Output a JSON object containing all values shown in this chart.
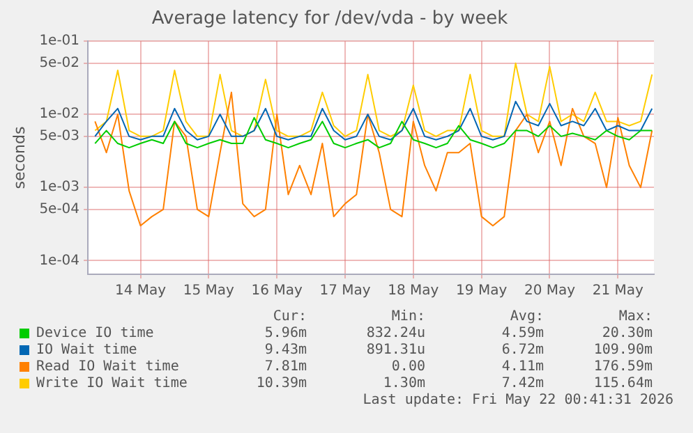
{
  "chart_data": {
    "type": "line",
    "title": "Average latency for /dev/vda - by week",
    "ylabel": "seconds",
    "log": "y",
    "grid": true,
    "legend": "bottom",
    "x": [
      "2026-05-13T20:00",
      "2026-05-14T00:00",
      "2026-05-14T04:00",
      "2026-05-14T08:00",
      "2026-05-14T12:00",
      "2026-05-14T16:00",
      "2026-05-14T20:00",
      "2026-05-15T00:00",
      "2026-05-15T04:00",
      "2026-05-15T08:00",
      "2026-05-15T12:00",
      "2026-05-15T16:00",
      "2026-05-15T20:00",
      "2026-05-16T00:00",
      "2026-05-16T04:00",
      "2026-05-16T08:00",
      "2026-05-16T12:00",
      "2026-05-16T16:00",
      "2026-05-16T20:00",
      "2026-05-17T00:00",
      "2026-05-17T04:00",
      "2026-05-17T08:00",
      "2026-05-17T12:00",
      "2026-05-17T16:00",
      "2026-05-17T20:00",
      "2026-05-18T00:00",
      "2026-05-18T04:00",
      "2026-05-18T08:00",
      "2026-05-18T12:00",
      "2026-05-18T16:00",
      "2026-05-18T20:00",
      "2026-05-19T00:00",
      "2026-05-19T04:00",
      "2026-05-19T08:00",
      "2026-05-19T12:00",
      "2026-05-19T16:00",
      "2026-05-19T20:00",
      "2026-05-20T00:00",
      "2026-05-20T04:00",
      "2026-05-20T08:00",
      "2026-05-20T12:00",
      "2026-05-20T16:00",
      "2026-05-20T20:00",
      "2026-05-21T00:00",
      "2026-05-21T04:00",
      "2026-05-21T08:00",
      "2026-05-21T12:00",
      "2026-05-21T16:00",
      "2026-05-21T20:00",
      "2026-05-22T00:00"
    ],
    "series": [
      {
        "name": "Device IO time",
        "color": "#00cc00",
        "values": [
          0.004,
          0.006,
          0.004,
          0.0035,
          0.004,
          0.0045,
          0.004,
          0.008,
          0.004,
          0.0035,
          0.004,
          0.0045,
          0.004,
          0.004,
          0.009,
          0.0045,
          0.004,
          0.0035,
          0.004,
          0.0045,
          0.008,
          0.004,
          0.0035,
          0.004,
          0.0045,
          0.0035,
          0.004,
          0.008,
          0.0045,
          0.004,
          0.0035,
          0.004,
          0.007,
          0.0045,
          0.004,
          0.0035,
          0.004,
          0.006,
          0.006,
          0.005,
          0.007,
          0.005,
          0.0055,
          0.005,
          0.0045,
          0.006,
          0.005,
          0.0045,
          0.006,
          0.006
        ]
      },
      {
        "name": "IO Wait time",
        "color": "#0066b3",
        "values": [
          0.005,
          0.008,
          0.012,
          0.005,
          0.0045,
          0.005,
          0.005,
          0.012,
          0.006,
          0.0045,
          0.005,
          0.01,
          0.005,
          0.005,
          0.006,
          0.012,
          0.005,
          0.0045,
          0.005,
          0.005,
          0.012,
          0.006,
          0.0045,
          0.005,
          0.01,
          0.005,
          0.0045,
          0.006,
          0.012,
          0.005,
          0.0045,
          0.005,
          0.006,
          0.012,
          0.005,
          0.0045,
          0.005,
          0.015,
          0.008,
          0.007,
          0.014,
          0.007,
          0.008,
          0.007,
          0.012,
          0.006,
          0.007,
          0.006,
          0.006,
          0.012
        ]
      },
      {
        "name": "Read IO Wait time",
        "color": "#ff8000",
        "values": [
          0.008,
          0.003,
          0.01,
          0.0009,
          0.0003,
          0.0004,
          0.0005,
          0.008,
          0.005,
          0.0005,
          0.0004,
          0.003,
          0.02,
          0.0006,
          0.0004,
          0.0005,
          0.01,
          0.0008,
          0.002,
          0.0008,
          0.004,
          0.0004,
          0.0006,
          0.0008,
          0.01,
          0.003,
          0.0005,
          0.0004,
          0.008,
          0.002,
          0.0009,
          0.003,
          0.003,
          0.004,
          0.0004,
          0.0003,
          0.0004,
          0.006,
          0.01,
          0.003,
          0.008,
          0.002,
          0.012,
          0.005,
          0.004,
          0.001,
          0.009,
          0.002,
          0.001,
          0.006
        ]
      },
      {
        "name": "Write IO Wait time",
        "color": "#ffcc00",
        "values": [
          0.006,
          0.008,
          0.04,
          0.006,
          0.005,
          0.005,
          0.006,
          0.04,
          0.008,
          0.005,
          0.005,
          0.035,
          0.006,
          0.005,
          0.006,
          0.03,
          0.006,
          0.005,
          0.005,
          0.006,
          0.02,
          0.007,
          0.005,
          0.006,
          0.035,
          0.006,
          0.005,
          0.006,
          0.025,
          0.006,
          0.005,
          0.006,
          0.006,
          0.035,
          0.006,
          0.005,
          0.005,
          0.05,
          0.01,
          0.008,
          0.045,
          0.008,
          0.01,
          0.008,
          0.02,
          0.008,
          0.008,
          0.007,
          0.008,
          0.035
        ]
      }
    ],
    "ylim": [
      6.5e-05,
      0.1
    ],
    "yticks": [
      {
        "value": 0.1,
        "label": "1e-01"
      },
      {
        "value": 0.05,
        "label": "5e-02"
      },
      {
        "value": 0.01,
        "label": "1e-02"
      },
      {
        "value": 0.005,
        "label": "5e-03"
      },
      {
        "value": 0.001,
        "label": "1e-03"
      },
      {
        "value": 0.0005,
        "label": "5e-04"
      },
      {
        "value": 0.0001,
        "label": "1e-04"
      }
    ],
    "xlim": [
      "2026-05-13T17:30",
      "2026-05-22T00:41"
    ],
    "xticks": [
      {
        "value": "2026-05-14T12:00",
        "label": "14 May"
      },
      {
        "value": "2026-05-15T12:00",
        "label": "15 May"
      },
      {
        "value": "2026-05-16T12:00",
        "label": "16 May"
      },
      {
        "value": "2026-05-17T12:00",
        "label": "17 May"
      },
      {
        "value": "2026-05-18T12:00",
        "label": "18 May"
      },
      {
        "value": "2026-05-19T12:00",
        "label": "19 May"
      },
      {
        "value": "2026-05-20T12:00",
        "label": "20 May"
      },
      {
        "value": "2026-05-21T12:00",
        "label": "21 May"
      }
    ],
    "annotations": [
      "Cur:",
      "Min:",
      "Avg:",
      "Max:",
      "5.96m",
      "832.24u",
      "4.59m",
      "20.30m",
      "9.43m",
      "891.31u",
      "6.72m",
      "109.90m",
      "7.81m",
      "0.00",
      "4.11m",
      "176.59m",
      "10.39m",
      "1.30m",
      "7.42m",
      "115.64m",
      "Last update: Fri May 22 00:41:31 2026"
    ]
  }
}
